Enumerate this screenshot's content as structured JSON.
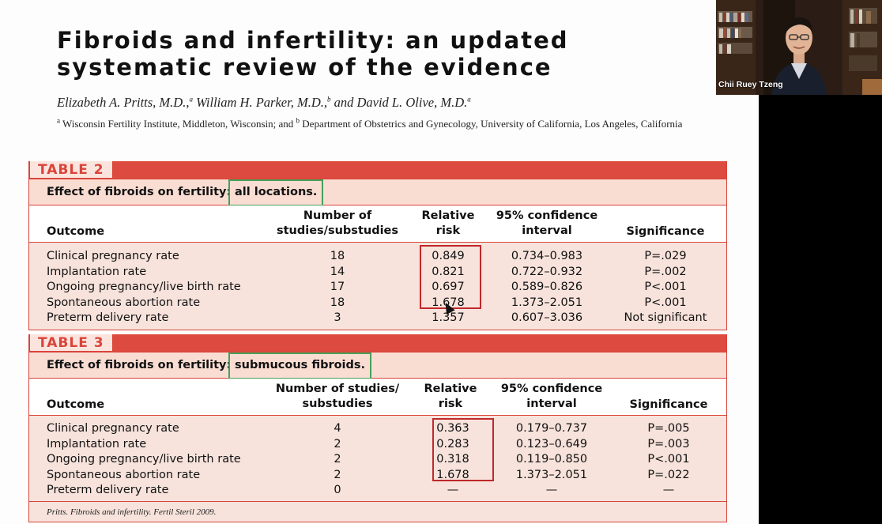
{
  "slide": {
    "title": "Fibroids and infertility: an updated systematic review of the evidence",
    "authors_html": "Elizabeth A. Pritts, M.D.,<sup>a</sup> William H. Parker, M.D.,<sup>b</sup> and David L. Olive, M.D.<sup>a</sup>",
    "affiliations_html": "<sup>a</sup> Wisconsin Fertility Institute, Middleton, Wisconsin; and <sup>b</sup> Department of Obstetrics and Gynecology, University of California, Los Angeles, California"
  },
  "table2": {
    "tag": "TABLE 2",
    "caption_prefix": "Effect of fibroids on fertility:",
    "caption_highlight": "all locations.",
    "headers": {
      "outcome": "Outcome",
      "num_line1": "Number of",
      "num_line2": "studies/substudies",
      "rr_line1": "Relative",
      "rr_line2": "risk",
      "ci_line1": "95% confidence",
      "ci_line2": "interval",
      "sig": "Significance"
    },
    "rows": [
      {
        "outcome": "Clinical pregnancy rate",
        "num": "18",
        "rr": "0.849",
        "ci": "0.734–0.983",
        "sig": "P=.029"
      },
      {
        "outcome": "Implantation rate",
        "num": "14",
        "rr": "0.821",
        "ci": "0.722–0.932",
        "sig": "P=.002"
      },
      {
        "outcome": "Ongoing pregnancy/live birth rate",
        "num": "17",
        "rr": "0.697",
        "ci": "0.589–0.826",
        "sig": "P<.001"
      },
      {
        "outcome": "Spontaneous abortion rate",
        "num": "18",
        "rr": "1.678",
        "ci": "1.373–2.051",
        "sig": "P<.001"
      },
      {
        "outcome": "Preterm delivery rate",
        "num": "3",
        "rr": "1.357",
        "ci": "0.607–3.036",
        "sig": "Not significant"
      }
    ]
  },
  "table3": {
    "tag": "TABLE 3",
    "caption_prefix": "Effect of fibroids on fertility:",
    "caption_highlight": "submucous fibroids.",
    "headers": {
      "outcome": "Outcome",
      "num_line1": "Number of studies/",
      "num_line2": "substudies",
      "rr_line1": "Relative",
      "rr_line2": "risk",
      "ci_line1": "95% confidence",
      "ci_line2": "interval",
      "sig": "Significance"
    },
    "rows": [
      {
        "outcome": "Clinical pregnancy rate",
        "num": "4",
        "rr": "0.363",
        "ci": "0.179–0.737",
        "sig": "P=.005"
      },
      {
        "outcome": "Implantation rate",
        "num": "2",
        "rr": "0.283",
        "ci": "0.123–0.649",
        "sig": "P=.003"
      },
      {
        "outcome": "Ongoing pregnancy/live birth rate",
        "num": "2",
        "rr": "0.318",
        "ci": "0.119–0.850",
        "sig": "P<.001"
      },
      {
        "outcome": "Spontaneous abortion rate",
        "num": "2",
        "rr": "1.678",
        "ci": "1.373–2.051",
        "sig": "P=.022"
      },
      {
        "outcome": "Preterm delivery rate",
        "num": "0",
        "rr": "—",
        "ci": "—",
        "sig": "—"
      }
    ],
    "footnote": "Pritts. Fibroids and infertility. Fertil Steril 2009."
  },
  "webcam": {
    "participant_name": "Chii Ruey Tzeng"
  },
  "colors": {
    "table_red": "#dd4a3f",
    "table_body": "#f7e3dc",
    "highlight_green": "#47a05a",
    "annotation_red": "#c0292a"
  }
}
